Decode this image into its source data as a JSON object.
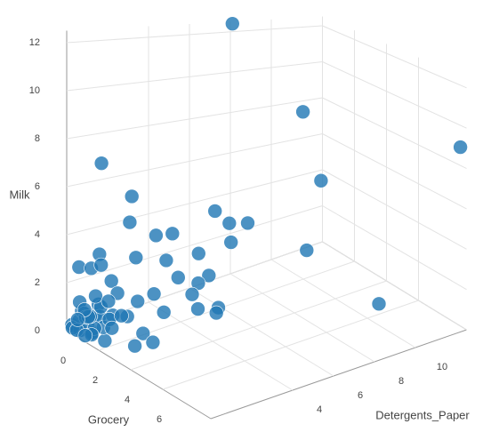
{
  "chart_data": {
    "type": "scatter3d",
    "x_label": "Grocery",
    "y_label": "Detergents_Paper",
    "z_label": "Milk",
    "color": "#1f77b4",
    "grid": true,
    "xlim": [
      0,
      9
    ],
    "ylim": [
      0,
      12.5
    ],
    "zlim": [
      0,
      12.5
    ],
    "xticks": [
      0,
      2,
      4,
      6
    ],
    "yticks": [
      4,
      6,
      8,
      10
    ],
    "zticks": [
      0,
      2,
      4,
      6,
      8,
      10,
      12
    ],
    "x": [
      0,
      3,
      9,
      4,
      4,
      8,
      0,
      1,
      3,
      3,
      3,
      4,
      1,
      2,
      2,
      3,
      1,
      2,
      0,
      0,
      0,
      1,
      3,
      3,
      4,
      4,
      5,
      5,
      5,
      4,
      5,
      4,
      3,
      2,
      1,
      1,
      1,
      2,
      2,
      2,
      0.2,
      0.4,
      0.6,
      0.3,
      0.8,
      1.0,
      0.5,
      1.2,
      0.7,
      0.1,
      0.9,
      1.4,
      0.3,
      0.6,
      1.1,
      0.2,
      0.5,
      1.6,
      0.8,
      0.4,
      1.3,
      0.7,
      1.0,
      0.2,
      1.8,
      0.6,
      0.9,
      1.5,
      0.3,
      1.2
    ],
    "y": [
      8.1,
      9.2,
      12.2,
      9.3,
      8.6,
      9.0,
      1.7,
      2.4,
      4.9,
      5.6,
      6.5,
      4.9,
      2.3,
      2.8,
      3.6,
      4.1,
      2.6,
      3.3,
      1.6,
      0.6,
      1.2,
      0.9,
      3.1,
      4.6,
      3.3,
      3.0,
      2.5,
      3.5,
      3.4,
      0.6,
      0.3,
      0.2,
      2.4,
      2.7,
      1.4,
      1.7,
      0.5,
      0.3,
      1.4,
      1.9,
      0.1,
      0.3,
      0.2,
      0.5,
      0.4,
      0.6,
      0.8,
      0.3,
      1.0,
      0.2,
      0.9,
      0.7,
      0.4,
      1.2,
      0.5,
      0.7,
      0.1,
      1.0,
      0.3,
      1.1,
      0.2,
      0.6,
      1.3,
      0.9,
      0.8,
      0.4,
      0.2,
      1.5,
      0.3,
      1.1
    ],
    "z": [
      12.4,
      9.0,
      9.1,
      6.0,
      2.8,
      1.9,
      6.7,
      5.5,
      5.1,
      4.4,
      4.2,
      4.1,
      4.4,
      4.1,
      4.0,
      3.4,
      2.8,
      2.9,
      2.8,
      2.5,
      2.3,
      2.9,
      2.6,
      2.3,
      2.7,
      2.3,
      2.2,
      2.0,
      1.8,
      1.3,
      1.4,
      0.9,
      1.3,
      1.6,
      2.1,
      1.5,
      0.2,
      0.3,
      1.0,
      1.5,
      0.3,
      0.5,
      0.2,
      0.8,
      0.4,
      0.9,
      0.6,
      0.3,
      1.1,
      0.1,
      0.7,
      0.5,
      1.2,
      0.9,
      0.4,
      0.6,
      0.2,
      1.0,
      0.8,
      1.3,
      0.3,
      0.7,
      0.5,
      0.4,
      0.6,
      1.0,
      0.1,
      0.8,
      0.5,
      1.4
    ]
  }
}
